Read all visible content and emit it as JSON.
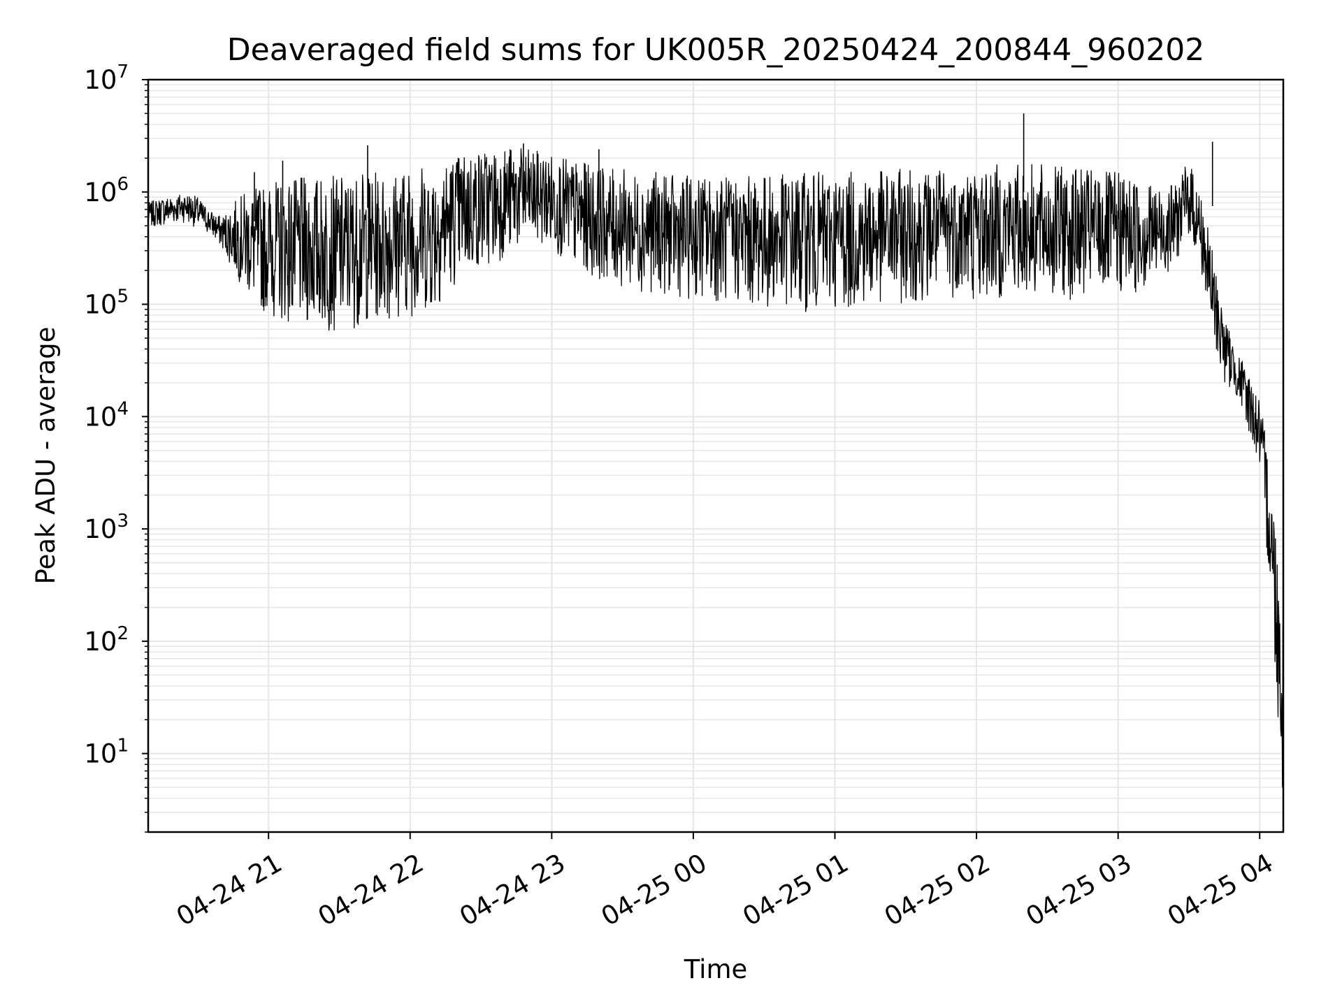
{
  "chart_data": {
    "type": "line",
    "title": "Deaveraged field sums for UK005R_20250424_200844_960202",
    "xlabel": "Time",
    "ylabel": "Peak ADU - average",
    "yscale": "log",
    "ylim": [
      2,
      10000000
    ],
    "xlim": [
      "2025-04-24 20:09",
      "2025-04-25 04:10"
    ],
    "grid": true,
    "line_color": "#000000",
    "grid_color": "#e6e6e6",
    "x_ticks": [
      {
        "value": "2025-04-24 21:00",
        "label": "04-24 21"
      },
      {
        "value": "2025-04-24 22:00",
        "label": "04-24 22"
      },
      {
        "value": "2025-04-24 23:00",
        "label": "04-24 23"
      },
      {
        "value": "2025-04-25 00:00",
        "label": "04-25 00"
      },
      {
        "value": "2025-04-25 01:00",
        "label": "04-25 01"
      },
      {
        "value": "2025-04-25 02:00",
        "label": "04-25 02"
      },
      {
        "value": "2025-04-25 03:00",
        "label": "04-25 03"
      },
      {
        "value": "2025-04-25 04:00",
        "label": "04-25 04"
      }
    ],
    "y_ticks": [
      {
        "value": 10,
        "base": "10",
        "exp": "1"
      },
      {
        "value": 100,
        "base": "10",
        "exp": "2"
      },
      {
        "value": 1000,
        "base": "10",
        "exp": "3"
      },
      {
        "value": 10000,
        "base": "10",
        "exp": "4"
      },
      {
        "value": 100000,
        "base": "10",
        "exp": "5"
      },
      {
        "value": 1000000,
        "base": "10",
        "exp": "6"
      },
      {
        "value": 10000000,
        "base": "10",
        "exp": "7"
      }
    ],
    "series": [
      {
        "x": [
          "2025-04-24 20:09",
          "2025-04-24 20:15",
          "2025-04-24 20:20",
          "2025-04-24 20:25",
          "2025-04-24 20:30",
          "2025-04-24 20:35",
          "2025-04-24 20:40",
          "2025-04-24 20:45",
          "2025-04-24 20:50",
          "2025-04-24 20:55",
          "2025-04-24 21:00",
          "2025-04-24 21:05",
          "2025-04-24 21:10",
          "2025-04-24 21:15",
          "2025-04-24 21:20",
          "2025-04-24 21:25",
          "2025-04-24 21:30",
          "2025-04-24 21:35",
          "2025-04-24 21:40",
          "2025-04-24 21:45",
          "2025-04-24 21:50",
          "2025-04-24 21:55",
          "2025-04-24 22:00",
          "2025-04-24 22:05",
          "2025-04-24 22:10",
          "2025-04-24 22:15",
          "2025-04-24 22:20",
          "2025-04-24 22:25",
          "2025-04-24 22:30",
          "2025-04-24 22:35",
          "2025-04-24 22:40",
          "2025-04-24 22:45",
          "2025-04-24 22:50",
          "2025-04-24 22:55",
          "2025-04-24 23:00",
          "2025-04-24 23:05",
          "2025-04-24 23:10",
          "2025-04-24 23:15",
          "2025-04-24 23:20",
          "2025-04-24 23:25",
          "2025-04-24 23:30",
          "2025-04-24 23:35",
          "2025-04-24 23:40",
          "2025-04-24 23:45",
          "2025-04-24 23:50",
          "2025-04-24 23:55",
          "2025-04-25 00:00",
          "2025-04-25 00:05",
          "2025-04-25 00:10",
          "2025-04-25 00:15",
          "2025-04-25 00:20",
          "2025-04-25 00:25",
          "2025-04-25 00:30",
          "2025-04-25 00:35",
          "2025-04-25 00:40",
          "2025-04-25 00:45",
          "2025-04-25 00:50",
          "2025-04-25 00:55",
          "2025-04-25 01:00",
          "2025-04-25 01:05",
          "2025-04-25 01:10",
          "2025-04-25 01:15",
          "2025-04-25 01:20",
          "2025-04-25 01:25",
          "2025-04-25 01:30",
          "2025-04-25 01:35",
          "2025-04-25 01:40",
          "2025-04-25 01:45",
          "2025-04-25 01:50",
          "2025-04-25 01:55",
          "2025-04-25 02:00",
          "2025-04-25 02:05",
          "2025-04-25 02:10",
          "2025-04-25 02:15",
          "2025-04-25 02:20",
          "2025-04-25 02:25",
          "2025-04-25 02:30",
          "2025-04-25 02:35",
          "2025-04-25 02:40",
          "2025-04-25 02:45",
          "2025-04-25 02:50",
          "2025-04-25 02:55",
          "2025-04-25 03:00",
          "2025-04-25 03:05",
          "2025-04-25 03:10",
          "2025-04-25 03:15",
          "2025-04-25 03:20",
          "2025-04-25 03:25",
          "2025-04-25 03:30",
          "2025-04-25 03:35",
          "2025-04-25 03:40",
          "2025-04-25 03:45",
          "2025-04-25 03:50",
          "2025-04-25 03:55",
          "2025-04-25 04:00",
          "2025-04-25 04:05",
          "2025-04-25 04:10"
        ],
        "y_low": [
          480000,
          500000,
          520000,
          540000,
          470000,
          420000,
          320000,
          200000,
          130000,
          90000,
          80000,
          70000,
          65000,
          62000,
          60000,
          58000,
          55000,
          60000,
          65000,
          70000,
          72000,
          75000,
          78000,
          80000,
          85000,
          120000,
          160000,
          180000,
          200000,
          220000,
          260000,
          300000,
          320000,
          330000,
          300000,
          250000,
          200000,
          180000,
          170000,
          150000,
          140000,
          130000,
          130000,
          125000,
          120000,
          115000,
          110000,
          110000,
          105000,
          100000,
          100000,
          95000,
          95000,
          90000,
          90000,
          85000,
          85000,
          85000,
          90000,
          90000,
          95000,
          95000,
          100000,
          100000,
          100000,
          105000,
          110000,
          110000,
          115000,
          110000,
          105000,
          110000,
          110000,
          110000,
          115000,
          115000,
          110000,
          110000,
          110000,
          110000,
          120000,
          120000,
          120000,
          120000,
          125000,
          140000,
          180000,
          250000,
          400000,
          200000,
          45000,
          20000,
          15000,
          8000,
          3000,
          200,
          3
        ],
        "y_high": [
          800000,
          900000,
          950000,
          1000000,
          900000,
          700000,
          600000,
          800000,
          1000000,
          1100000,
          1200000,
          1300000,
          1300000,
          1350000,
          1400000,
          1400000,
          1400000,
          1400000,
          1500000,
          1500000,
          1500000,
          1600000,
          1700000,
          1800000,
          1900000,
          2000000,
          2200000,
          2400000,
          2500000,
          2500000,
          2600000,
          2500000,
          2400000,
          2300000,
          2200000,
          2000000,
          1900000,
          1800000,
          1700000,
          1600000,
          1600000,
          1500000,
          1500000,
          1500000,
          1400000,
          1400000,
          1400000,
          1400000,
          1400000,
          1400000,
          1400000,
          1400000,
          1400000,
          1450000,
          1450000,
          1500000,
          1500000,
          1500000,
          1500000,
          1500000,
          1500000,
          1500000,
          1550000,
          1600000,
          1600000,
          1600000,
          1600000,
          1650000,
          1650000,
          1700000,
          1700000,
          1700000,
          1800000,
          1800000,
          1800000,
          1800000,
          1700000,
          1700000,
          1700000,
          1600000,
          1600000,
          1500000,
          1500000,
          1400000,
          1400000,
          1200000,
          1100000,
          1200000,
          2000000,
          1000000,
          300000,
          80000,
          40000,
          25000,
          15000,
          3000,
          200
        ]
      }
    ],
    "spikes": [
      {
        "x": "2025-04-24 20:54",
        "y": 1500000
      },
      {
        "x": "2025-04-24 21:06",
        "y": 1900000
      },
      {
        "x": "2025-04-24 21:42",
        "y": 2600000
      },
      {
        "x": "2025-04-24 22:48",
        "y": 2700000
      },
      {
        "x": "2025-04-24 23:20",
        "y": 2400000
      },
      {
        "x": "2025-04-25 02:20",
        "y": 5000000
      },
      {
        "x": "2025-04-25 03:40",
        "y": 2800000
      }
    ]
  }
}
